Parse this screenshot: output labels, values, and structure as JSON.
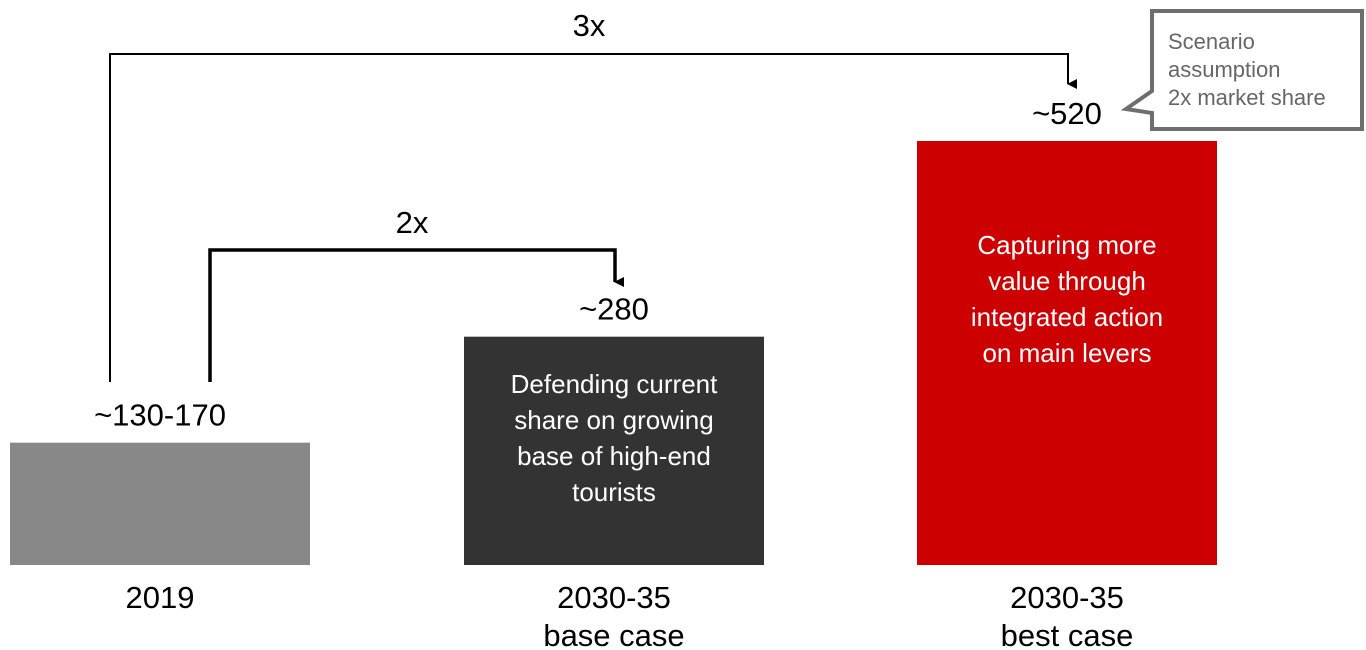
{
  "chart_data": {
    "type": "bar",
    "categories": [
      "2019",
      "2030-35 base case",
      "2030-35 best case"
    ],
    "category_lines": [
      [
        "2019"
      ],
      [
        "2030-35",
        "base case"
      ],
      [
        "2030-35",
        "best case"
      ]
    ],
    "values": [
      150,
      280,
      520
    ],
    "value_labels": [
      "~130-170",
      "~280",
      "~520"
    ],
    "bar_colors": [
      "#888888",
      "#333333",
      "#cc0000"
    ],
    "bar_texts": [
      [],
      [
        "Defending current",
        "share on growing",
        "base of high-end",
        "tourists"
      ],
      [
        "Capturing more",
        "value through",
        "integrated action",
        "on main levers"
      ]
    ],
    "ylim": [
      0,
      520
    ],
    "multipliers": [
      {
        "label": "2x",
        "from": 0,
        "to": 1
      },
      {
        "label": "3x",
        "from": 0,
        "to": 2
      }
    ],
    "callout": [
      "Scenario",
      "assumption",
      "2x market share"
    ]
  }
}
